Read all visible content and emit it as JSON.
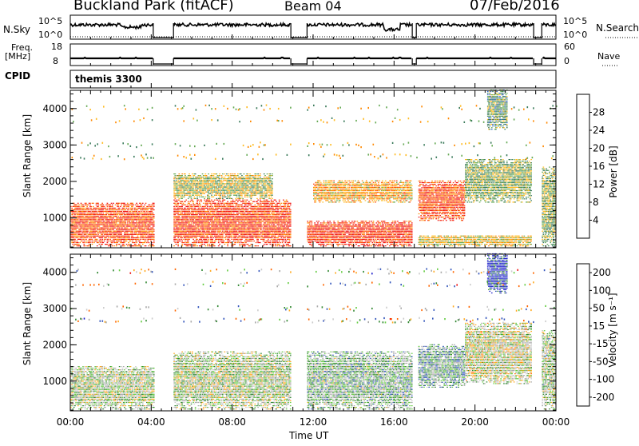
{
  "header": {
    "title": "Buckland Park (fitACF)",
    "beam": "Beam 04",
    "date": "07/Feb/2016"
  },
  "top_panels": {
    "nsky_label": "N.Sky",
    "nsky_ticks": [
      "10^5",
      "10^0"
    ],
    "nsearch_label": "N.Search",
    "nsearch_ticks": [
      "10^5",
      "10^0"
    ],
    "freq_label_line1": "Freq.",
    "freq_label_line2": "[MHz]",
    "freq_ticks": [
      "18",
      "8"
    ],
    "nave_label": "Nave",
    "nave_ticks": [
      "60",
      "0"
    ],
    "cpid_label": "CPID",
    "cpid_value": "themis 3300"
  },
  "colors": {
    "power_scale": [
      "#1a1aff",
      "#3366cc",
      "#3a7a5a",
      "#66aa55",
      "#ffbb22",
      "#ff8800",
      "#ff4411",
      "#ee1111"
    ],
    "velocity_scale": [
      "#ee1111",
      "#ff6600",
      "#ffaa22",
      "#cccccc",
      "#aaaaaa",
      "#66cc44",
      "#338833",
      "#3355bb",
      "#2222cc"
    ]
  },
  "chart_data": [
    {
      "type": "heatmap",
      "panel": "power",
      "ylabel": "Slant Range [km]",
      "xlabel": "",
      "x_ticks": [
        "00:00",
        "04:00",
        "08:00",
        "12:00",
        "16:00",
        "20:00",
        "00:00"
      ],
      "x_range_hours": [
        0,
        24
      ],
      "y_ticks": [
        1000,
        2000,
        3000,
        4000
      ],
      "ylim": [
        180,
        4500
      ],
      "colorbar": {
        "label": "Power [dB]",
        "ticks": [
          4,
          8,
          12,
          16,
          20,
          24,
          28
        ],
        "range": [
          0,
          32
        ]
      },
      "data_gaps_hours": [
        [
          4.1,
          5.1
        ],
        [
          10.9,
          11.7
        ],
        [
          16.9,
          17.1
        ],
        [
          22.9,
          23.3
        ]
      ],
      "echo_regions": [
        {
          "t": [
            0,
            4.1
          ],
          "r": [
            200,
            1400
          ],
          "level": 26
        },
        {
          "t": [
            5.1,
            11.0
          ],
          "r": [
            200,
            1500
          ],
          "level": 27
        },
        {
          "t": [
            5.1,
            10.0
          ],
          "r": [
            1500,
            2200
          ],
          "level": 16
        },
        {
          "t": [
            11.7,
            17.0
          ],
          "r": [
            200,
            900
          ],
          "level": 28
        },
        {
          "t": [
            12.0,
            17.0
          ],
          "r": [
            1400,
            2000
          ],
          "level": 20
        },
        {
          "t": [
            17.2,
            19.5
          ],
          "r": [
            900,
            2000
          ],
          "level": 26
        },
        {
          "t": [
            19.5,
            22.8
          ],
          "r": [
            1400,
            2600
          ],
          "level": 14
        },
        {
          "t": [
            20.6,
            21.6
          ],
          "r": [
            3400,
            4500
          ],
          "level": 12
        },
        {
          "t": [
            17.2,
            22.8
          ],
          "r": [
            200,
            500
          ],
          "level": 18
        },
        {
          "t": [
            23.3,
            24.0
          ],
          "r": [
            200,
            2400
          ],
          "level": 14
        }
      ]
    },
    {
      "type": "heatmap",
      "panel": "velocity",
      "ylabel": "Slant Range [km]",
      "xlabel": "Time UT",
      "x_ticks": [
        "00:00",
        "04:00",
        "08:00",
        "12:00",
        "16:00",
        "20:00",
        "00:00"
      ],
      "x_range_hours": [
        0,
        24
      ],
      "y_ticks": [
        1000,
        2000,
        3000,
        4000
      ],
      "ylim": [
        180,
        4500
      ],
      "colorbar": {
        "label": "Velocity [m s⁻¹]",
        "ticks": [
          200,
          100,
          50,
          15,
          -15,
          -50,
          -100,
          -200
        ],
        "range": [
          -250,
          250
        ]
      },
      "data_gaps_hours": [
        [
          4.1,
          5.1
        ],
        [
          10.9,
          11.7
        ],
        [
          16.9,
          17.1
        ],
        [
          22.9,
          23.3
        ]
      ],
      "echo_regions": [
        {
          "t": [
            0,
            4.1
          ],
          "r": [
            200,
            1400
          ],
          "level": 0
        },
        {
          "t": [
            5.1,
            11.0
          ],
          "r": [
            200,
            1800
          ],
          "level": 0
        },
        {
          "t": [
            11.7,
            17.0
          ],
          "r": [
            200,
            1800
          ],
          "level": 40
        },
        {
          "t": [
            17.2,
            19.5
          ],
          "r": [
            800,
            2000
          ],
          "level": 60
        },
        {
          "t": [
            19.5,
            22.8
          ],
          "r": [
            900,
            2600
          ],
          "level": -20
        },
        {
          "t": [
            20.6,
            21.6
          ],
          "r": [
            3400,
            4500
          ],
          "level": 220
        },
        {
          "t": [
            23.3,
            24.0
          ],
          "r": [
            200,
            2400
          ],
          "level": 10
        }
      ]
    }
  ]
}
